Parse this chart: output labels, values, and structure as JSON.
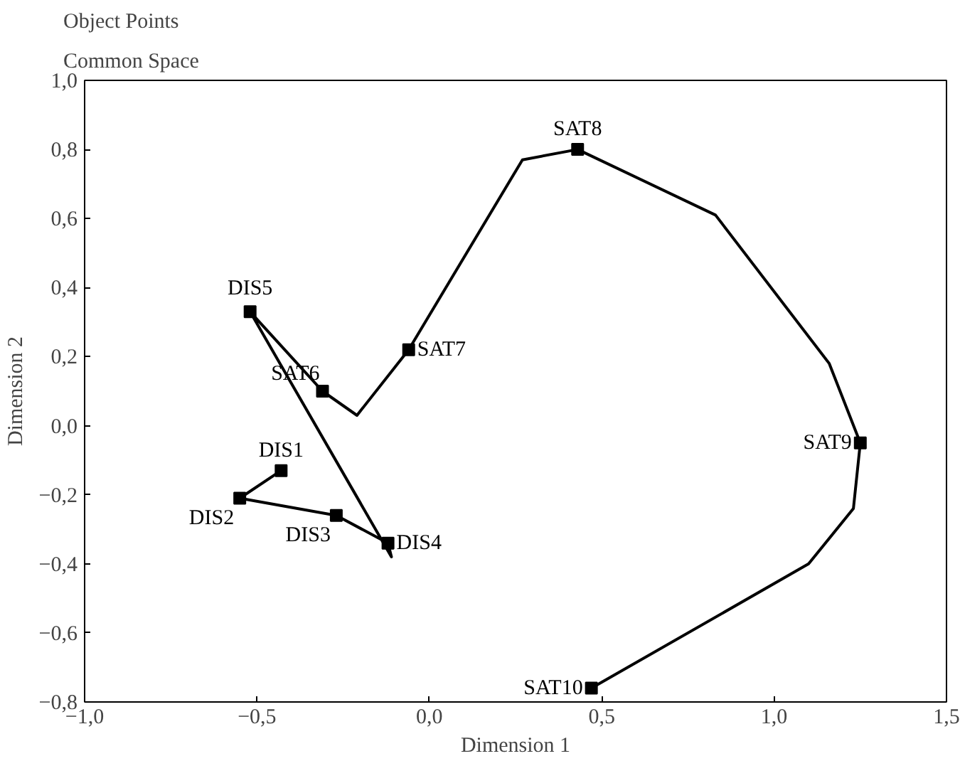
{
  "chart_data": {
    "type": "scatter",
    "title": "Object Points",
    "subtitle": "Common Space",
    "xlabel": "Dimension 1",
    "ylabel": "Dimension 2",
    "series": [
      {
        "type": "line",
        "color": "#000000",
        "marker": "none",
        "x": [
          -0.43,
          -0.55,
          -0.27,
          -0.12,
          -0.11,
          -0.52,
          -0.31,
          -0.21,
          -0.06,
          0.27,
          0.43,
          0.83,
          1.16,
          1.25,
          1.23,
          1.1,
          0.47
        ],
        "values": [
          -0.13,
          -0.21,
          -0.26,
          -0.34,
          -0.38,
          0.33,
          0.1,
          0.03,
          0.22,
          0.77,
          0.8,
          0.61,
          0.18,
          -0.05,
          -0.24,
          -0.4,
          -0.76
        ]
      },
      {
        "color": "#000000",
        "marker": "square",
        "x": [
          -0.43,
          -0.55,
          -0.27,
          -0.12,
          -0.52,
          -0.31,
          -0.06,
          0.43,
          1.25,
          0.47
        ],
        "values": [
          -0.13,
          -0.21,
          -0.26,
          -0.34,
          0.33,
          0.1,
          0.22,
          0.8,
          -0.05,
          -0.76
        ]
      }
    ],
    "annotations": [
      {
        "text": "DIS1",
        "x": -0.43,
        "y": -0.13
      },
      {
        "text": "DIS2",
        "x": -0.55,
        "y": -0.21
      },
      {
        "text": "DIS3",
        "x": -0.27,
        "y": -0.26
      },
      {
        "text": "DIS4",
        "x": -0.12,
        "y": -0.34
      },
      {
        "text": "DIS5",
        "x": -0.52,
        "y": 0.33
      },
      {
        "text": "SAT6",
        "x": -0.31,
        "y": 0.1
      },
      {
        "text": "SAT7",
        "x": -0.06,
        "y": 0.22
      },
      {
        "text": "SAT8",
        "x": 0.43,
        "y": 0.8
      },
      {
        "text": "SAT9",
        "x": 1.25,
        "y": -0.05
      },
      {
        "text": "SAT10",
        "x": 0.47,
        "y": -0.76
      }
    ],
    "xlim": [
      -1.0,
      1.5
    ],
    "ylim": [
      -0.8,
      1.0
    ],
    "xticks": [
      {
        "value": -1.0,
        "label": "−1,0"
      },
      {
        "value": -0.5,
        "label": "−0,5"
      },
      {
        "value": 0,
        "label": "0,0"
      },
      {
        "value": 0.5,
        "label": "0,5"
      },
      {
        "value": 1.0,
        "label": "1,0"
      },
      {
        "value": 1.5,
        "label": "1,5"
      }
    ],
    "yticks": [
      {
        "value": -0.8,
        "label": "−0,8"
      },
      {
        "value": -0.6,
        "label": "−0,6"
      },
      {
        "value": -0.4,
        "label": "−0,4"
      },
      {
        "value": -0.2,
        "label": "−0,2"
      },
      {
        "value": 0,
        "label": "0,0"
      },
      {
        "value": 0.2,
        "label": "0,2"
      },
      {
        "value": 0.4,
        "label": "0,4"
      },
      {
        "value": 0.6,
        "label": "0,6"
      },
      {
        "value": 0.8,
        "label": "0,8"
      },
      {
        "value": 1.0,
        "label": "1,0"
      }
    ],
    "grid": false
  }
}
